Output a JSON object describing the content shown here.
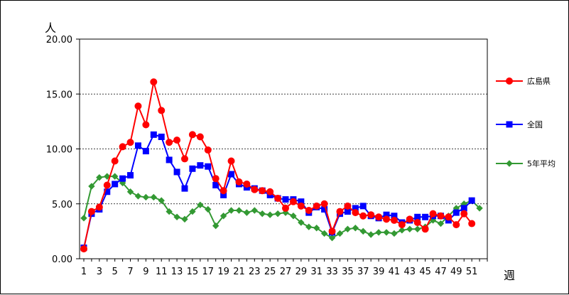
{
  "chart_data": {
    "type": "line",
    "title": "",
    "ylabel": "人",
    "xlabel": "週",
    "ylim": [
      0,
      20
    ],
    "yticks": [
      "0.00",
      "5.00",
      "10.00",
      "15.00",
      "20.00"
    ],
    "xlim": [
      1,
      53
    ],
    "xticks": [
      "1",
      "3",
      "5",
      "7",
      "9",
      "11",
      "13",
      "15",
      "17",
      "19",
      "21",
      "23",
      "25",
      "27",
      "29",
      "31",
      "33",
      "35",
      "37",
      "39",
      "41",
      "43",
      "45",
      "47",
      "49",
      "51"
    ],
    "grid": true,
    "legend_position": "right",
    "series": [
      {
        "name": "広島県",
        "color": "#ff0000",
        "marker": "circle",
        "x": [
          1,
          2,
          3,
          4,
          5,
          6,
          7,
          8,
          9,
          10,
          11,
          12,
          13,
          14,
          15,
          16,
          17,
          18,
          19,
          20,
          21,
          22,
          23,
          24,
          25,
          26,
          27,
          28,
          29,
          30,
          31,
          32,
          33,
          34,
          35,
          36,
          37,
          38,
          39,
          40,
          41,
          42,
          43,
          44,
          45,
          46,
          47,
          48,
          49,
          50,
          51
        ],
        "values": [
          0.9,
          4.3,
          4.7,
          6.7,
          8.9,
          10.2,
          10.6,
          13.9,
          12.2,
          16.1,
          13.5,
          10.6,
          10.8,
          9.1,
          11.3,
          11.1,
          9.9,
          7.3,
          6.2,
          8.9,
          7.0,
          6.8,
          6.3,
          6.2,
          6.1,
          5.5,
          4.6,
          5.2,
          4.8,
          4.4,
          4.8,
          5.0,
          2.5,
          4.3,
          4.8,
          4.2,
          3.9,
          4.0,
          3.8,
          3.6,
          3.5,
          3.1,
          3.6,
          3.3,
          2.7,
          4.1,
          3.9,
          3.8,
          3.1,
          4.1,
          3.2
        ]
      },
      {
        "name": "全国",
        "color": "#0000ff",
        "marker": "square",
        "x": [
          1,
          2,
          3,
          4,
          5,
          6,
          7,
          8,
          9,
          10,
          11,
          12,
          13,
          14,
          15,
          16,
          17,
          18,
          19,
          20,
          21,
          22,
          23,
          24,
          25,
          26,
          27,
          28,
          29,
          30,
          31,
          32,
          33,
          34,
          35,
          36,
          37,
          38,
          39,
          40,
          41,
          42,
          43,
          44,
          45,
          46,
          47,
          48,
          49,
          50,
          51
        ],
        "values": [
          1.0,
          4.1,
          4.5,
          6.1,
          6.8,
          7.3,
          7.6,
          10.3,
          9.8,
          11.3,
          11.1,
          9.0,
          7.9,
          6.4,
          8.2,
          8.5,
          8.4,
          6.7,
          5.8,
          7.7,
          6.8,
          6.5,
          6.4,
          6.2,
          5.8,
          5.5,
          5.4,
          5.4,
          5.2,
          4.2,
          4.7,
          4.5,
          2.4,
          4.1,
          4.3,
          4.6,
          4.8,
          3.9,
          3.7,
          4.0,
          3.9,
          3.3,
          3.5,
          3.8,
          3.8,
          3.9,
          3.9,
          3.5,
          4.2,
          4.6,
          5.3
        ]
      },
      {
        "name": "5年平均",
        "color": "#339933",
        "marker": "diamond",
        "x": [
          1,
          2,
          3,
          4,
          5,
          6,
          7,
          8,
          9,
          10,
          11,
          12,
          13,
          14,
          15,
          16,
          17,
          18,
          19,
          20,
          21,
          22,
          23,
          24,
          25,
          26,
          27,
          28,
          29,
          30,
          31,
          32,
          33,
          34,
          35,
          36,
          37,
          38,
          39,
          40,
          41,
          42,
          43,
          44,
          45,
          46,
          47,
          48,
          49,
          50,
          51,
          52
        ],
        "values": [
          3.7,
          6.6,
          7.4,
          7.5,
          7.5,
          6.9,
          6.1,
          5.7,
          5.6,
          5.6,
          5.3,
          4.3,
          3.8,
          3.6,
          4.3,
          4.9,
          4.5,
          3.0,
          3.9,
          4.4,
          4.4,
          4.2,
          4.4,
          4.1,
          4.0,
          4.1,
          4.2,
          3.9,
          3.3,
          2.9,
          2.8,
          2.3,
          1.9,
          2.3,
          2.7,
          2.8,
          2.5,
          2.2,
          2.4,
          2.4,
          2.3,
          2.6,
          2.7,
          2.7,
          2.9,
          3.5,
          3.2,
          3.9,
          4.6,
          5.0,
          5.3,
          4.6
        ]
      }
    ]
  }
}
